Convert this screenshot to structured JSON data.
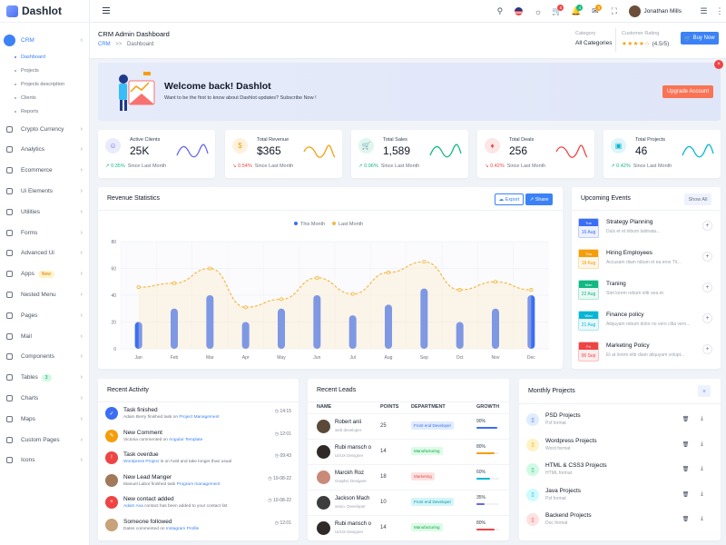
{
  "app": {
    "name": "Dashlot"
  },
  "sidebar": {
    "items": [
      {
        "label": "CRM",
        "active": true
      },
      {
        "label": "Crypto Currency"
      },
      {
        "label": "Analytics"
      },
      {
        "label": "Ecommerce"
      },
      {
        "label": "Ui Elements"
      },
      {
        "label": "Utilities"
      },
      {
        "label": "Forms"
      },
      {
        "label": "Advanced Ui"
      },
      {
        "label": "Apps",
        "badge": "New"
      },
      {
        "label": "Nested Menu"
      },
      {
        "label": "Pages"
      },
      {
        "label": "Mail"
      },
      {
        "label": "Components"
      },
      {
        "label": "Tables",
        "badge": "3"
      },
      {
        "label": "Charts"
      },
      {
        "label": "Maps"
      },
      {
        "label": "Custom Pages"
      },
      {
        "label": "Icons"
      }
    ],
    "crm_sub": [
      "Dashboard",
      "Projects",
      "Projects description",
      "Clients",
      "Reports"
    ]
  },
  "topbar": {
    "user": "Jonathan Mills",
    "icons": [
      "search-icon",
      "flag-icon",
      "theme-icon",
      "cart-icon",
      "bell-icon",
      "message-icon",
      "fullscreen-icon",
      "settings-icon"
    ],
    "badges": {
      "cart": "5",
      "bell": "4",
      "message": "5"
    }
  },
  "header": {
    "title": "CRM Admin Dashboard",
    "breadcrumb": [
      "CRM",
      "Dashboard"
    ],
    "breadcrumb_sep": ">>",
    "category_label": "Category",
    "category_value": "All Categories",
    "rating_label": "Customer Rating",
    "rating_stars": "★★★★☆",
    "rating_value": "(4.5/5)",
    "buy_label": "Buy Now"
  },
  "banner": {
    "title": "Welcome back! Dashlot",
    "subtitle": "Want to be the first to know about Dashlot updates? Subscribe Now !",
    "button": "Upgrade Account",
    "close": "×"
  },
  "kpis": [
    {
      "label": "Active Clients",
      "value": "25K",
      "change": "↗ 0.35%",
      "since": "Since Last Month",
      "color": "#6366f1",
      "trend": "up"
    },
    {
      "label": "Total Revenue",
      "value": "$365",
      "change": "↘ 0.54%",
      "since": "Since Last Month",
      "color": "#f59e0b",
      "trend": "down"
    },
    {
      "label": "Total Sales",
      "value": "1,589",
      "change": "↗ 0.96%",
      "since": "Since Last Month",
      "color": "#10b981",
      "trend": "up"
    },
    {
      "label": "Total Deals",
      "value": "256",
      "change": "↘ 0.42%",
      "since": "Since Last Month",
      "color": "#ef4444",
      "trend": "down"
    },
    {
      "label": "Total Projects",
      "value": "46",
      "change": "↗ 0.42%",
      "since": "Since Last Month",
      "color": "#06b6d4",
      "trend": "up"
    }
  ],
  "revenue": {
    "title": "Revenue Statistics",
    "export": "Export",
    "share": "Share"
  },
  "chart_data": {
    "type": "bar",
    "categories": [
      "Jan",
      "Feb",
      "Mar",
      "Apr",
      "May",
      "Jun",
      "Jul",
      "Aug",
      "Sep",
      "Oct",
      "Nov",
      "Dec"
    ],
    "series": [
      {
        "name": "This Month",
        "type": "bar",
        "values": [
          20,
          30,
          40,
          20,
          30,
          40,
          25,
          33,
          45,
          20,
          30,
          40
        ],
        "color": "#3b6ef5"
      },
      {
        "name": "Last Month",
        "type": "line",
        "values": [
          46,
          49,
          60,
          31,
          37,
          53,
          41,
          57,
          65,
          44,
          50,
          44
        ],
        "color": "#f5b942"
      }
    ],
    "ylim": [
      0,
      80
    ],
    "yticks": [
      0,
      20,
      40,
      60,
      80
    ],
    "grid": true,
    "legend": "top-center"
  },
  "events": {
    "title": "Upcoming Events",
    "show_all": "Show All",
    "items": [
      {
        "day": "Tue",
        "date": "16 Aug",
        "title": "Strategy Planning",
        "desc": "Duis et et nibum talimata...",
        "color": "#3b6ef5"
      },
      {
        "day": "Thu",
        "date": "18 Aug",
        "title": "Hiring Employees",
        "desc": "Accusam diam nibum et ea eros Til...",
        "color": "#f59e0b"
      },
      {
        "day": "Mon",
        "date": "22 Aug",
        "title": "Traning",
        "desc": "Stet lorem rebum elitr sea et.",
        "color": "#10b981"
      },
      {
        "day": "Wed",
        "date": "21 Aug",
        "title": "Finance policy",
        "desc": "Aliquyam rebum dolor no vero clita vero...",
        "color": "#06b6d4"
      },
      {
        "day": "Fri",
        "date": "06 Sep",
        "title": "Marketing Policy",
        "desc": "Et at lorem elitr diam aliquyam volupt...",
        "color": "#ef4444"
      }
    ]
  },
  "activity": {
    "title": "Recent Activity",
    "items": [
      {
        "title": "Task finished",
        "pre": "Adam Berry finished task on ",
        "link": "Project Management",
        "post": "",
        "time": "14:15",
        "color": "#3b6ef5",
        "icon": "✓"
      },
      {
        "title": "New Comment",
        "pre": "Victoria commented on ",
        "link": "Angular Template",
        "post": "",
        "time": "12:01",
        "color": "#f59e0b",
        "icon": "✎"
      },
      {
        "title": "Task overdue",
        "pre": "",
        "link": "Wordpress Project",
        "post": " is on hold and take longer than usual",
        "time": "09:43",
        "color": "#ef4444",
        "icon": "!"
      },
      {
        "title": "New Lead Manger",
        "pre": "Manuel Labor finished task ",
        "link": "Program management",
        "post": "",
        "time": "10-08-22",
        "color": "#a0785a",
        "icon": ""
      },
      {
        "title": "New contact added",
        "pre": "",
        "link": "Adam Ava",
        "post": " contact has been added to your contact list",
        "time": "10-08-22",
        "color": "#ef4444",
        "icon": "+"
      },
      {
        "title": "Someone followed",
        "pre": "Dates commented on ",
        "link": "Instagram Profile",
        "post": "",
        "time": "12:01",
        "color": "#c9a27a",
        "icon": ""
      }
    ]
  },
  "leads": {
    "title": "Recent Leads",
    "headers": [
      "NAME",
      "POINTS",
      "DEPARTMENT",
      "GROWTH"
    ],
    "rows": [
      {
        "name": "Robert anii",
        "role": "web developer",
        "points": "25",
        "dept": "Front end Developer",
        "dept_bg": "#e0ecff",
        "dept_fg": "#3b6ef5",
        "growth": "90%",
        "pct": 0.9,
        "bar": "#3b6ef5"
      },
      {
        "name": "Rubi mansch o",
        "role": "UI/UX Designer",
        "points": "14",
        "dept": "Manufacturing",
        "dept_bg": "#dcfce7",
        "dept_fg": "#16a34a",
        "growth": "80%",
        "pct": 0.8,
        "bar": "#f59e0b"
      },
      {
        "name": "Marckh Roz",
        "role": "Graphic Designer",
        "points": "18",
        "dept": "Marketing",
        "dept_bg": "#fde2e2",
        "dept_fg": "#ef4444",
        "growth": "60%",
        "pct": 0.6,
        "bar": "#06b6d4"
      },
      {
        "name": "Jackson Mach",
        "role": "senio. Developer",
        "points": "10",
        "dept": "Front end Developer",
        "dept_bg": "#d5f5f6",
        "dept_fg": "#0891b2",
        "growth": "35%",
        "pct": 0.35,
        "bar": "#6366f1"
      },
      {
        "name": "Rubi mansch o",
        "role": "UI/UX Designer",
        "points": "14",
        "dept": "Manufacturing",
        "dept_bg": "#dcfce7",
        "dept_fg": "#16a34a",
        "growth": "80%",
        "pct": 0.8,
        "bar": "#ef4444"
      }
    ]
  },
  "projects": {
    "title": "Monthly Projects",
    "items": [
      {
        "name": "PSD Projects",
        "format": "Psf format",
        "color": "#3b6ef5",
        "bg": "#e0ecff"
      },
      {
        "name": "Wordpress Projects",
        "format": "Word format",
        "color": "#f59e0b",
        "bg": "#fef3c7"
      },
      {
        "name": "HTML & CSS3 Projects",
        "format": "HTML format",
        "color": "#10b981",
        "bg": "#d1fae5"
      },
      {
        "name": "Java Projects",
        "format": "Psf format",
        "color": "#06b6d4",
        "bg": "#cffafe"
      },
      {
        "name": "Backend Projects",
        "format": "Doc format",
        "color": "#ef4444",
        "bg": "#fee2e2"
      }
    ]
  }
}
